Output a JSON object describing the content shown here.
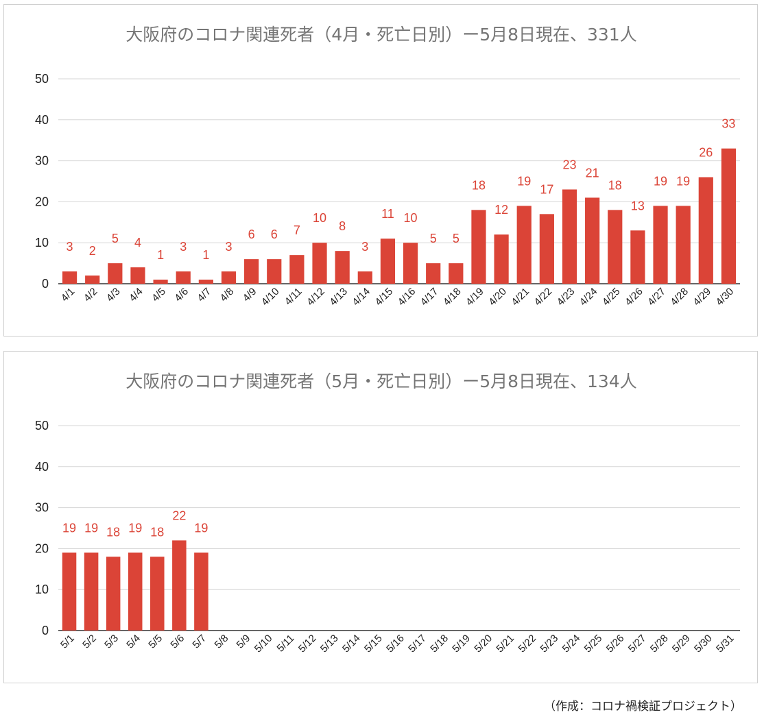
{
  "chart_data": [
    {
      "type": "bar",
      "title": "大阪府のコロナ関連死者（4月・死亡日別）ー5月8日現在、331人",
      "xlabel": "",
      "ylabel": "",
      "ylim": [
        0,
        50
      ],
      "yticks": [
        0,
        10,
        20,
        30,
        40,
        50
      ],
      "grid": true,
      "legend": "none",
      "bar_color": "#db4437",
      "categories": [
        "4/1",
        "4/2",
        "4/3",
        "4/4",
        "4/5",
        "4/6",
        "4/7",
        "4/8",
        "4/9",
        "4/10",
        "4/11",
        "4/12",
        "4/13",
        "4/14",
        "4/15",
        "4/16",
        "4/17",
        "4/18",
        "4/19",
        "4/20",
        "4/21",
        "4/22",
        "4/23",
        "4/24",
        "4/25",
        "4/26",
        "4/27",
        "4/28",
        "4/29",
        "4/30"
      ],
      "values": [
        3,
        2,
        5,
        4,
        1,
        3,
        1,
        3,
        6,
        6,
        7,
        10,
        8,
        3,
        11,
        10,
        5,
        5,
        18,
        12,
        19,
        17,
        23,
        21,
        18,
        13,
        19,
        19,
        26,
        33
      ]
    },
    {
      "type": "bar",
      "title": "大阪府のコロナ関連死者（5月・死亡日別）ー5月8日現在、134人",
      "xlabel": "",
      "ylabel": "",
      "ylim": [
        0,
        50
      ],
      "yticks": [
        0,
        10,
        20,
        30,
        40,
        50
      ],
      "grid": true,
      "legend": "none",
      "bar_color": "#db4437",
      "categories": [
        "5/1",
        "5/2",
        "5/3",
        "5/4",
        "5/5",
        "5/6",
        "5/7",
        "5/8",
        "5/9",
        "5/10",
        "5/11",
        "5/12",
        "5/13",
        "5/14",
        "5/15",
        "5/16",
        "5/17",
        "5/18",
        "5/19",
        "5/20",
        "5/21",
        "5/22",
        "5/23",
        "5/24",
        "5/25",
        "5/26",
        "5/27",
        "5/28",
        "5/29",
        "5/30",
        "5/31"
      ],
      "values": [
        19,
        19,
        18,
        19,
        18,
        22,
        19,
        null,
        null,
        null,
        null,
        null,
        null,
        null,
        null,
        null,
        null,
        null,
        null,
        null,
        null,
        null,
        null,
        null,
        null,
        null,
        null,
        null,
        null,
        null,
        null
      ]
    }
  ],
  "footer": {
    "credit": "（作成：コロナ禍検証プロジェクト）"
  }
}
